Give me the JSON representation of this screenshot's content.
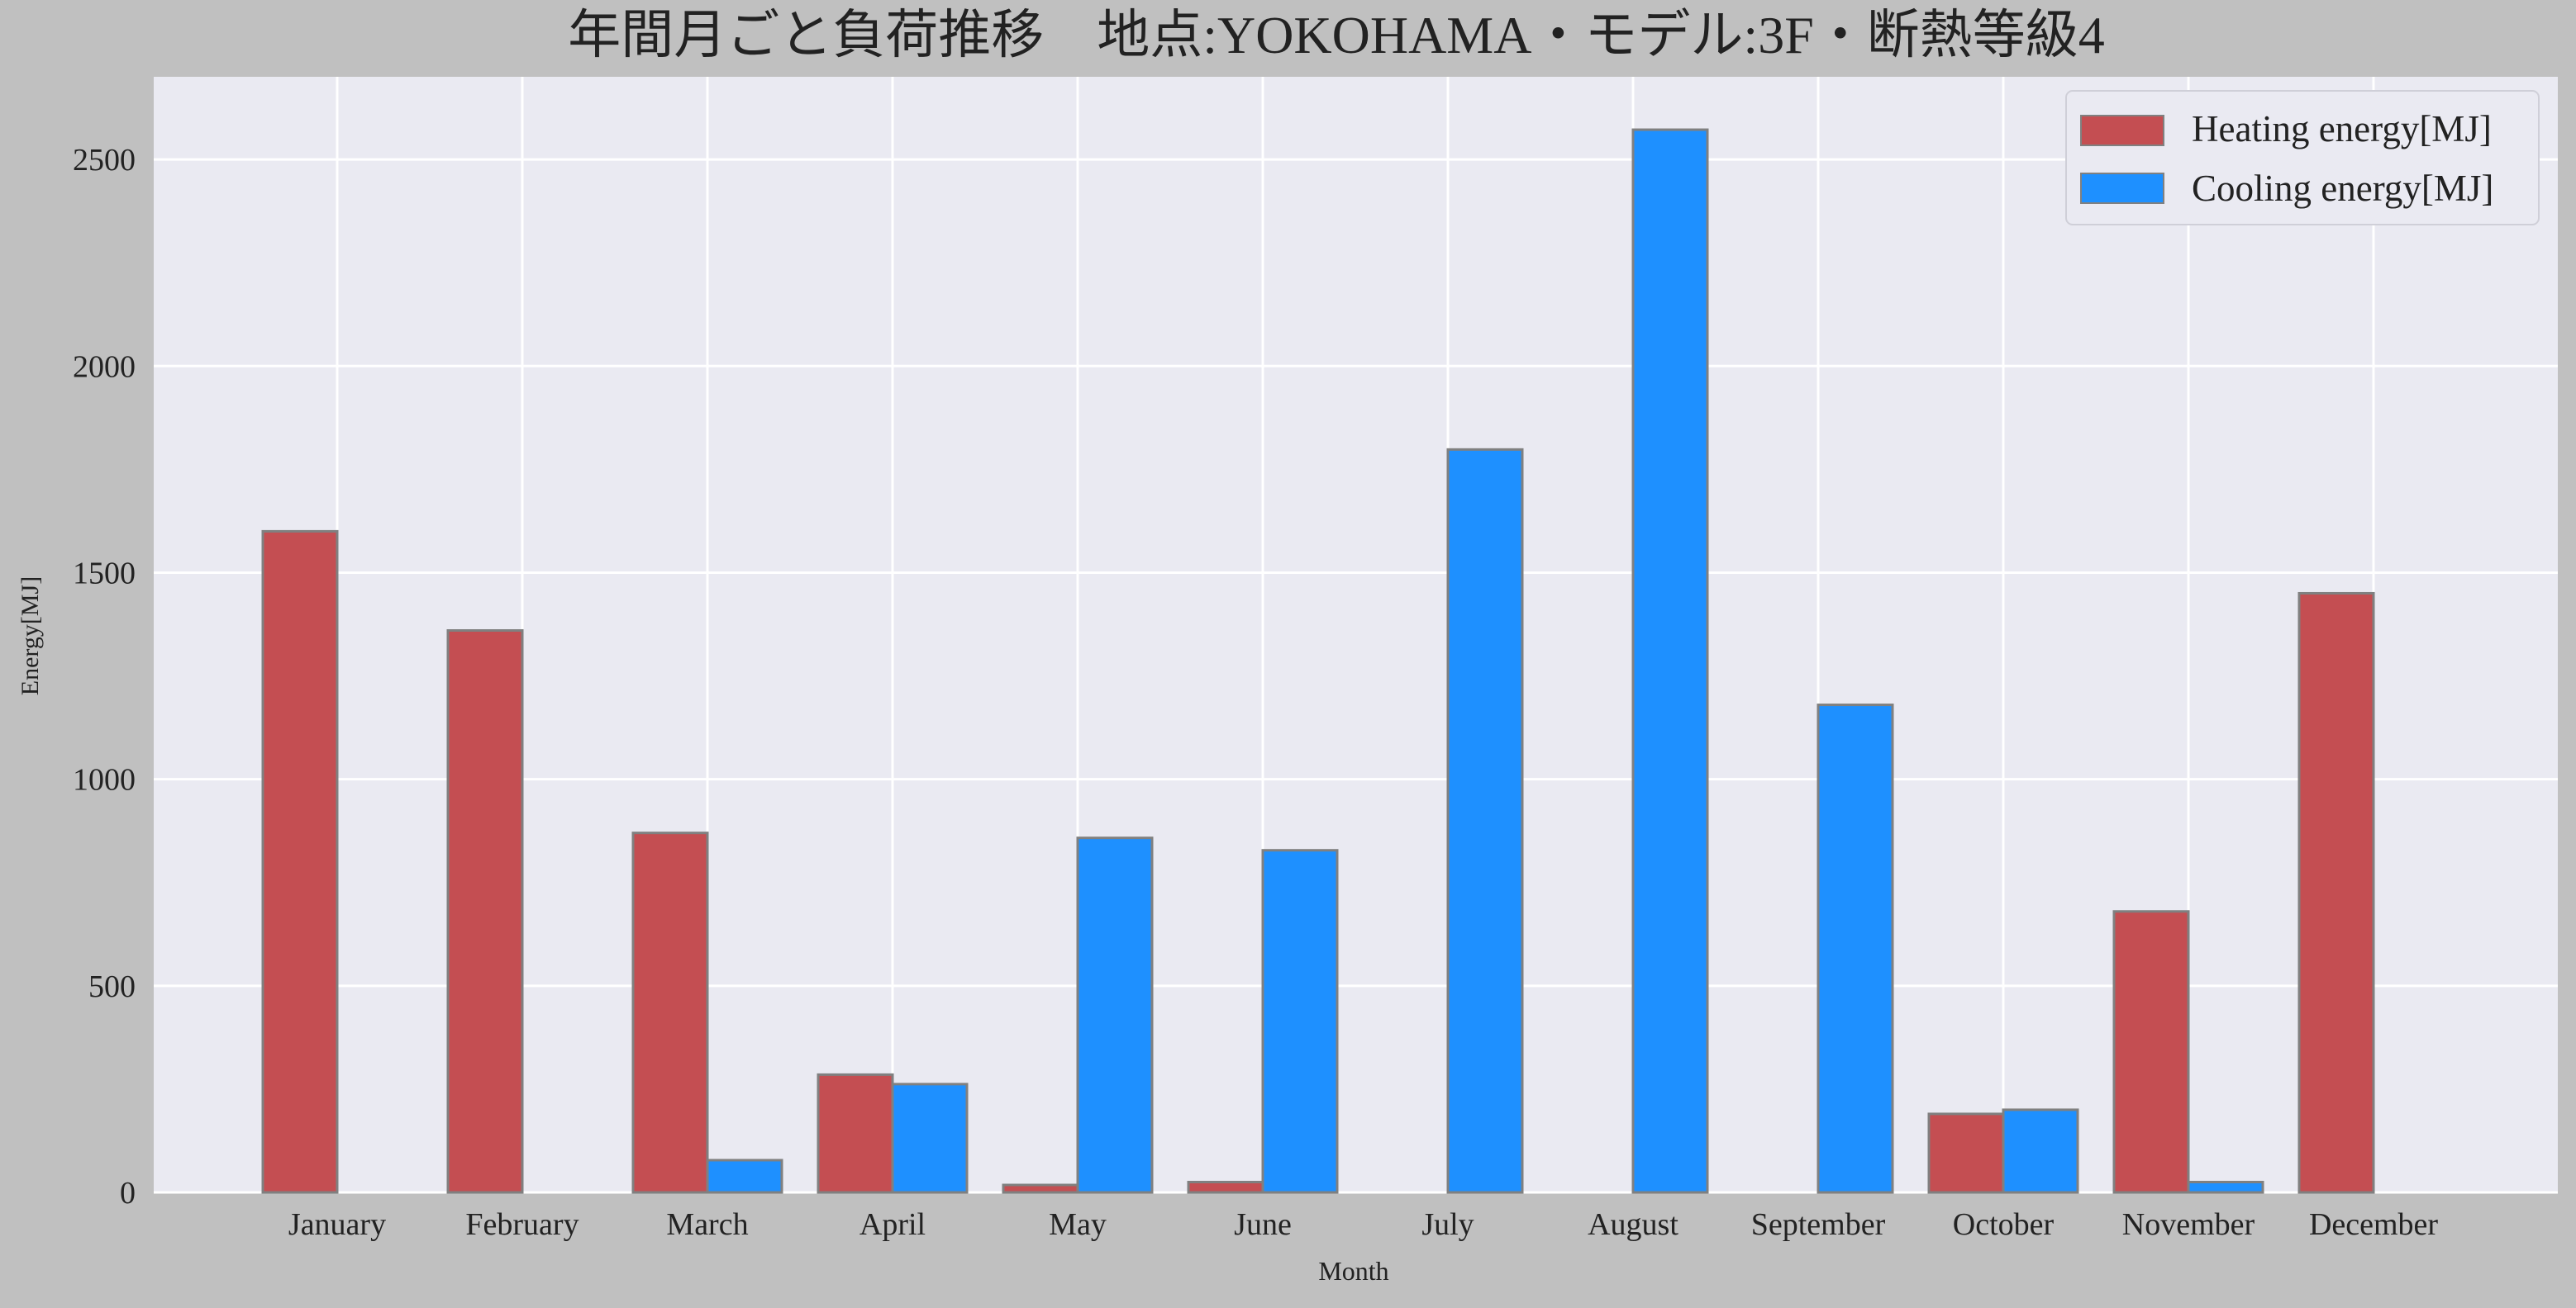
{
  "chart_data": {
    "type": "bar",
    "title": "年間月ごと負荷推移　地点:YOKOHAMA・モデル:3F・断熱等級4",
    "xlabel": "Month",
    "ylabel": "Energy[MJ]",
    "ylim": [
      0,
      2700
    ],
    "yticks": [
      0,
      500,
      1000,
      1500,
      2000,
      2500
    ],
    "grid": true,
    "legend_position": "top-right",
    "categories": [
      "January",
      "February",
      "March",
      "April",
      "May",
      "June",
      "July",
      "August",
      "September",
      "October",
      "November",
      "December"
    ],
    "series": [
      {
        "name": "Heating energy[MJ]",
        "color": "#c44e52",
        "values": [
          1600,
          1360,
          870,
          285,
          18,
          25,
          0,
          0,
          0,
          190,
          680,
          1450
        ]
      },
      {
        "name": "Cooling energy[MJ]",
        "color": "#1e90ff",
        "values": [
          0,
          0,
          78,
          262,
          858,
          828,
          1798,
          2572,
          1180,
          200,
          25,
          0
        ]
      }
    ],
    "colors": {
      "figure_background": "#c0c0c0",
      "plot_background": "#eaeaf2",
      "grid": "#ffffff",
      "bar_edge": "#808080"
    }
  }
}
